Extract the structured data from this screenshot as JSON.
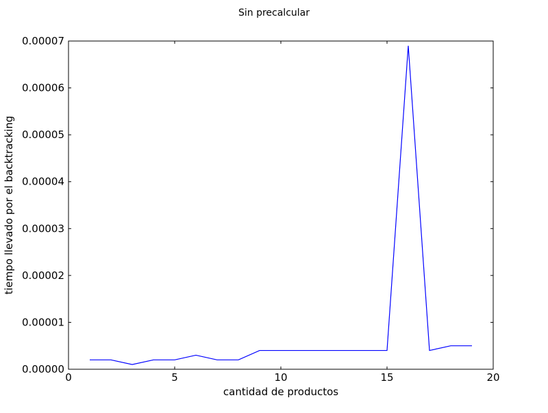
{
  "chart_data": {
    "type": "line",
    "title": "Sin precalcular",
    "xlabel": "cantidad de productos",
    "ylabel": "tiempo llevado por el backtracking",
    "xlim": [
      0,
      20
    ],
    "ylim": [
      0,
      7e-05
    ],
    "xticks": [
      0,
      5,
      10,
      15,
      20
    ],
    "xtick_labels": [
      "0",
      "5",
      "10",
      "15",
      "20"
    ],
    "yticks": [
      0,
      1e-05,
      2e-05,
      3e-05,
      4e-05,
      5e-05,
      6e-05,
      7e-05
    ],
    "ytick_labels": [
      "0.00000",
      "0.00001",
      "0.00002",
      "0.00003",
      "0.00004",
      "0.00005",
      "0.00006",
      "0.00007"
    ],
    "grid": false,
    "series": [
      {
        "color": "#0000ff",
        "x": [
          1,
          2,
          3,
          4,
          5,
          6,
          7,
          8,
          9,
          10,
          11,
          12,
          13,
          14,
          15,
          16,
          17,
          18,
          19
        ],
        "y": [
          2e-06,
          2e-06,
          1e-06,
          2e-06,
          2e-06,
          3e-06,
          2e-06,
          2e-06,
          4e-06,
          4e-06,
          4e-06,
          4e-06,
          4e-06,
          4e-06,
          4e-06,
          6.9e-05,
          4e-06,
          5e-06,
          5e-06
        ]
      }
    ]
  }
}
